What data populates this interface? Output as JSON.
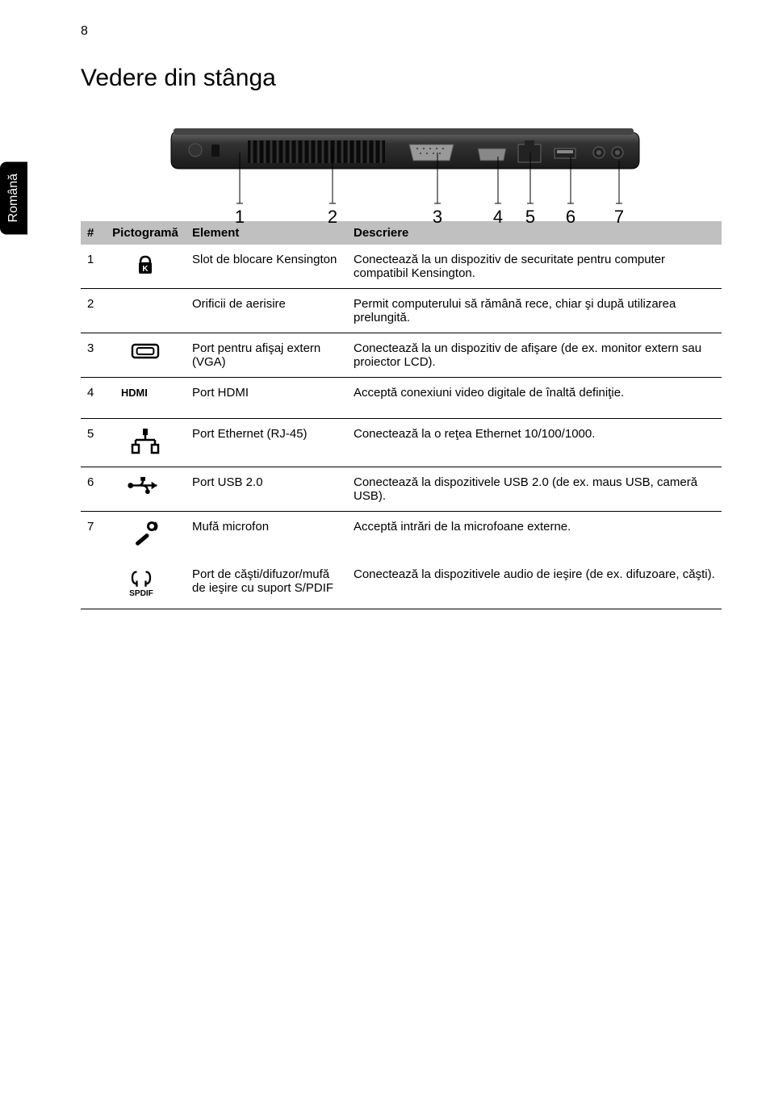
{
  "page_number": "8",
  "side_tab": "Română",
  "heading": "Vedere din stânga",
  "diagram": {
    "callout_numbers": [
      "1",
      "2",
      "3",
      "4",
      "5",
      "6",
      "7"
    ],
    "callout_positions_x": [
      100,
      215,
      345,
      420,
      460,
      510,
      570
    ],
    "body_color": "#2a2a2a",
    "body_highlight": "#555555",
    "vent_color": "#000000",
    "port_color": "#888888",
    "line_color": "#000000",
    "font_size": 22
  },
  "table": {
    "header_bg": "#c0c0c0",
    "border_color": "#000000",
    "text_color": "#000000",
    "font_size": 15,
    "columns": [
      "#",
      "Pictogramă",
      "Element",
      "Descriere"
    ],
    "rows": [
      {
        "num": "1",
        "icon": "lock",
        "element": "Slot de blocare Kensington",
        "desc": "Conectează la un dispozitiv de securitate pentru computer compatibil Kensington."
      },
      {
        "num": "2",
        "icon": "",
        "element": "Orificii de aerisire",
        "desc": "Permit computerului să rămână rece, chiar şi după utilizarea prelungită."
      },
      {
        "num": "3",
        "icon": "vga",
        "element": "Port pentru afişaj extern (VGA)",
        "desc": "Conectează la un dispozitiv de afişare (de ex. monitor extern sau proiector LCD)."
      },
      {
        "num": "4",
        "icon": "hdmi",
        "element": "Port HDMI",
        "desc": "Acceptă conexiuni video digitale de înaltă definiţie."
      },
      {
        "num": "5",
        "icon": "ethernet",
        "element": "Port Ethernet (RJ-45)",
        "desc": "Conectează la o reţea Ethernet 10/100/1000."
      },
      {
        "num": "6",
        "icon": "usb",
        "element": "Port USB 2.0",
        "desc": "Conectează la dispozitivele USB 2.0 (de ex. maus USB, cameră USB)."
      },
      {
        "num": "7",
        "icon": "mic",
        "element": "Mufă microfon",
        "desc": "Acceptă intrări de la microfoane externe.",
        "no_border": true
      },
      {
        "num": "",
        "icon": "spdif",
        "element": "Port de căşti/difuzor/mufă de ieşire cu suport S/PDIF",
        "desc": "Conectează la dispozitivele audio de ieşire (de ex. difuzoare, căşti).",
        "last": true
      }
    ]
  }
}
